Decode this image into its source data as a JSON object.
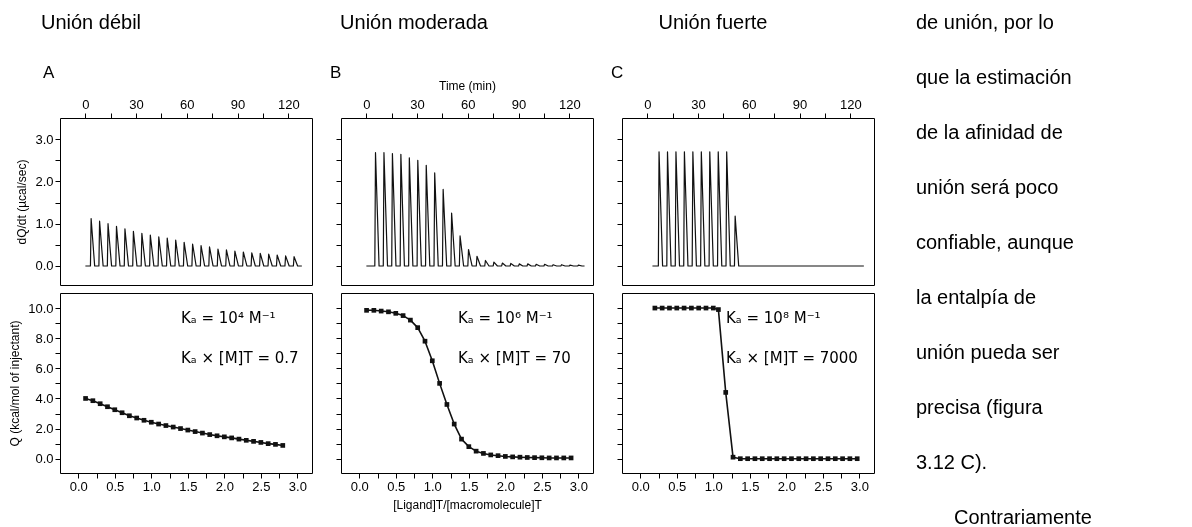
{
  "chart_data": [
    {
      "type": "line",
      "title": "Unión débil",
      "ylabel": "dQ/dt (µcal/sec)",
      "xlim": [
        -15,
        134
      ],
      "xticks": [
        0,
        {
          "value": 15,
          "label": null
        },
        30,
        {
          "value": 45,
          "label": null
        },
        60,
        {
          "value": 75,
          "label": null
        },
        90,
        {
          "value": 105,
          "label": null
        },
        120
      ],
      "ylim": [
        -0.45,
        3.5
      ],
      "yticks": [
        {
          "value": 0,
          "label": "0.0"
        },
        {
          "value": 0.5,
          "label": null
        },
        {
          "value": 1,
          "label": "1.0"
        },
        {
          "value": 1.5,
          "label": null
        },
        {
          "value": 2,
          "label": "2.0"
        },
        {
          "value": 2.5,
          "label": null
        },
        {
          "value": 3,
          "label": "3.0"
        }
      ],
      "annotations": [
        "A"
      ],
      "series": [
        {
          "color": "#111111",
          "x": [
            0,
            3,
            3.4,
            5.5,
            8,
            8.4,
            10.5,
            13,
            13.4,
            15.5,
            18,
            18.4,
            20.5,
            23,
            23.4,
            25.5,
            28,
            28.4,
            30.5,
            33,
            33.4,
            35.5,
            38,
            38.4,
            40.5,
            43,
            43.4,
            45.5,
            48,
            48.4,
            50.5,
            53,
            53.4,
            55.5,
            58,
            58.4,
            60.5,
            63,
            63.4,
            65.5,
            68,
            68.4,
            70.5,
            73,
            73.4,
            75.5,
            78,
            78.4,
            80.5,
            83,
            83.4,
            85.5,
            88,
            88.4,
            90.5,
            93,
            93.4,
            95.5,
            98,
            98.4,
            100.5,
            103,
            103.4,
            105.5,
            108,
            108.4,
            110.5,
            113,
            113.4,
            115.5,
            118,
            118.4,
            120.5,
            123,
            123.4,
            125.5,
            128
          ],
          "values": [
            0,
            0,
            1.12,
            0,
            0,
            1.06,
            0,
            0,
            1,
            0,
            0,
            0.94,
            0,
            0,
            0.88,
            0,
            0,
            0.82,
            0,
            0,
            0.77,
            0,
            0,
            0.73,
            0,
            0,
            0.69,
            0,
            0,
            0.66,
            0,
            0,
            0.61,
            0,
            0,
            0.56,
            0,
            0,
            0.52,
            0,
            0,
            0.48,
            0,
            0,
            0.45,
            0,
            0,
            0.4,
            0,
            0,
            0.38,
            0,
            0,
            0.35,
            0,
            0,
            0.33,
            0,
            0,
            0.31,
            0,
            0,
            0.3,
            0,
            0,
            0.28,
            0,
            0,
            0.26,
            0,
            0,
            0.24,
            0,
            0,
            0.22,
            0,
            0
          ]
        }
      ]
    },
    {
      "type": "line",
      "title": "Unión moderada",
      "xlabel": "Time (min)",
      "xlim": [
        -15,
        134
      ],
      "xticks": [
        0,
        {
          "value": 15,
          "label": null
        },
        30,
        {
          "value": 45,
          "label": null
        },
        60,
        {
          "value": 75,
          "label": null
        },
        90,
        {
          "value": 105,
          "label": null
        },
        120
      ],
      "ylim": [
        -0.45,
        3.5
      ],
      "yticks": [
        {
          "value": 0,
          "label": null
        },
        {
          "value": 0.5,
          "label": null
        },
        {
          "value": 1,
          "label": null
        },
        {
          "value": 1.5,
          "label": null
        },
        {
          "value": 2,
          "label": null
        },
        {
          "value": 2.5,
          "label": null
        },
        {
          "value": 3,
          "label": null
        }
      ],
      "tick_labels": "x",
      "annotations": [
        "B"
      ],
      "series": [
        {
          "color": "#111111",
          "x": [
            0,
            5,
            5.4,
            7.5,
            10,
            10.4,
            12.5,
            15,
            15.4,
            17.5,
            20,
            20.4,
            22.5,
            25,
            25.4,
            27.5,
            30,
            30.4,
            32.5,
            35,
            35.4,
            37.5,
            40,
            40.4,
            42.5,
            45,
            45.4,
            47.5,
            50,
            50.4,
            52.5,
            55,
            55.4,
            57.5,
            60,
            60.4,
            62.5,
            65,
            65.4,
            67.5,
            70,
            70.4,
            72.5,
            75,
            75.4,
            77.5,
            80,
            80.4,
            82.5,
            85,
            85.4,
            87.5,
            90,
            90.4,
            92.5,
            95,
            95.4,
            97.5,
            100,
            100.4,
            102.5,
            105,
            105.4,
            107.5,
            110,
            110.4,
            112.5,
            115,
            115.4,
            117.5,
            120,
            120.4,
            122.5,
            125,
            125.4,
            127.5,
            129
          ],
          "values": [
            0,
            0,
            2.68,
            0,
            0,
            2.68,
            0,
            0,
            2.66,
            0,
            0,
            2.64,
            0,
            0,
            2.56,
            0,
            0,
            2.5,
            0,
            0,
            2.38,
            0,
            0,
            2.2,
            0,
            0,
            1.81,
            0,
            0,
            1.25,
            0,
            0,
            0.71,
            0,
            0,
            0.39,
            0,
            0,
            0.23,
            0,
            0,
            0.13,
            0,
            0,
            0.09,
            0,
            0,
            0.07,
            0,
            0,
            0.06,
            0,
            0,
            0.05,
            0,
            0,
            0.05,
            0,
            0,
            0.04,
            0,
            0,
            0.04,
            0,
            0,
            0.03,
            0,
            0,
            0.03,
            0,
            0,
            0.02,
            0,
            0,
            0.02,
            0,
            0
          ]
        }
      ]
    },
    {
      "type": "line",
      "title": "Unión fuerte",
      "xlim": [
        -15,
        134
      ],
      "xticks": [
        0,
        {
          "value": 15,
          "label": null
        },
        30,
        {
          "value": 45,
          "label": null
        },
        60,
        {
          "value": 75,
          "label": null
        },
        90,
        {
          "value": 105,
          "label": null
        },
        120
      ],
      "ylim": [
        -0.45,
        3.5
      ],
      "yticks": [
        {
          "value": 0,
          "label": null
        },
        {
          "value": 0.5,
          "label": null
        },
        {
          "value": 1,
          "label": null
        },
        {
          "value": 1.5,
          "label": null
        },
        {
          "value": 2,
          "label": null
        },
        {
          "value": 2.5,
          "label": null
        },
        {
          "value": 3,
          "label": null
        }
      ],
      "tick_labels": "x",
      "annotations": [
        "C"
      ],
      "series": [
        {
          "color": "#111111",
          "x": [
            3,
            6.5,
            6.9,
            9,
            11.5,
            11.9,
            14,
            16.5,
            16.9,
            19,
            21.5,
            21.9,
            24,
            26.5,
            26.9,
            29,
            31.5,
            31.9,
            34,
            36.5,
            36.9,
            39,
            41.5,
            41.9,
            44,
            46.5,
            46.9,
            49,
            51.5,
            51.9,
            54,
            128
          ],
          "values": [
            0,
            0,
            2.7,
            0,
            0,
            2.7,
            0,
            0,
            2.7,
            0,
            0,
            2.7,
            0,
            0,
            2.7,
            0,
            0,
            2.7,
            0,
            0,
            2.7,
            0,
            0,
            2.7,
            0,
            0,
            2.7,
            0,
            0,
            1.18,
            0,
            0
          ]
        }
      ]
    },
    {
      "type": "line",
      "ylabel": "Q (kcal/mol of injectant)",
      "marker": "square",
      "xlim": [
        -0.25,
        3.2
      ],
      "xticks": [
        {
          "value": 0,
          "label": "0.0"
        },
        {
          "value": 0.25,
          "label": null
        },
        0.5,
        {
          "value": 0.75,
          "label": null
        },
        {
          "value": 1,
          "label": "1.0"
        },
        {
          "value": 1.25,
          "label": null
        },
        1.5,
        {
          "value": 1.75,
          "label": null
        },
        {
          "value": 2,
          "label": "2.0"
        },
        {
          "value": 2.25,
          "label": null
        },
        2.5,
        {
          "value": 2.75,
          "label": null
        },
        {
          "value": 3,
          "label": "3.0"
        }
      ],
      "ylim": [
        -0.95,
        11
      ],
      "yticks": [
        {
          "value": 0,
          "label": "0.0"
        },
        {
          "value": 1,
          "label": null
        },
        {
          "value": 2,
          "label": "2.0"
        },
        {
          "value": 3,
          "label": null
        },
        {
          "value": 4,
          "label": "4.0"
        },
        {
          "value": 5,
          "label": null
        },
        {
          "value": 6,
          "label": "6.0"
        },
        {
          "value": 7,
          "label": null
        },
        {
          "value": 8,
          "label": "8.0"
        },
        {
          "value": 9,
          "label": null
        },
        {
          "value": 10,
          "label": "10.0"
        }
      ],
      "annotations": [
        "Kₐ = 10⁴ M⁻¹",
        "Kₐ × [M]T = 0.7"
      ],
      "series": [
        {
          "color": "#111111",
          "x": [
            0.1,
            0.2,
            0.3,
            0.4,
            0.5,
            0.6,
            0.7,
            0.8,
            0.9,
            1,
            1.1,
            1.2,
            1.3,
            1.4,
            1.5,
            1.6,
            1.7,
            1.8,
            1.9,
            2,
            2.1,
            2.2,
            2.3,
            2.4,
            2.5,
            2.6,
            2.7,
            2.8
          ],
          "values": [
            4,
            3.85,
            3.65,
            3.45,
            3.25,
            3.05,
            2.85,
            2.7,
            2.55,
            2.42,
            2.3,
            2.2,
            2.1,
            2,
            1.9,
            1.8,
            1.7,
            1.6,
            1.52,
            1.45,
            1.38,
            1.3,
            1.22,
            1.15,
            1.08,
            1,
            0.95,
            0.88
          ]
        }
      ]
    },
    {
      "type": "line",
      "xlabel": "[Ligand]T/[macromolecule]T",
      "marker": "square",
      "xlim": [
        -0.25,
        3.2
      ],
      "xticks": [
        {
          "value": 0,
          "label": "0.0"
        },
        {
          "value": 0.25,
          "label": null
        },
        0.5,
        {
          "value": 0.75,
          "label": null
        },
        {
          "value": 1,
          "label": "1.0"
        },
        {
          "value": 1.25,
          "label": null
        },
        1.5,
        {
          "value": 1.75,
          "label": null
        },
        {
          "value": 2,
          "label": "2.0"
        },
        {
          "value": 2.25,
          "label": null
        },
        2.5,
        {
          "value": 2.75,
          "label": null
        },
        {
          "value": 3,
          "label": "3.0"
        }
      ],
      "ylim": [
        -0.95,
        11
      ],
      "yticks": [
        {
          "value": 0,
          "label": null
        },
        {
          "value": 1,
          "label": null
        },
        {
          "value": 2,
          "label": null
        },
        {
          "value": 3,
          "label": null
        },
        {
          "value": 4,
          "label": null
        },
        {
          "value": 5,
          "label": null
        },
        {
          "value": 6,
          "label": null
        },
        {
          "value": 7,
          "label": null
        },
        {
          "value": 8,
          "label": null
        },
        {
          "value": 9,
          "label": null
        },
        {
          "value": 10,
          "label": null
        }
      ],
      "tick_labels": "x",
      "annotations": [
        "Kₐ = 10⁶ M⁻¹",
        "Kₐ × [M]T = 70"
      ],
      "series": [
        {
          "color": "#111111",
          "x": [
            0.1,
            0.2,
            0.3,
            0.4,
            0.5,
            0.6,
            0.7,
            0.8,
            0.9,
            1,
            1.1,
            1.2,
            1.3,
            1.4,
            1.5,
            1.6,
            1.7,
            1.8,
            1.9,
            2,
            2.1,
            2.2,
            2.3,
            2.4,
            2.5,
            2.6,
            2.7,
            2.8,
            2.9
          ],
          "values": [
            9.85,
            9.85,
            9.8,
            9.75,
            9.65,
            9.5,
            9.2,
            8.7,
            7.8,
            6.5,
            5,
            3.6,
            2.3,
            1.3,
            0.8,
            0.5,
            0.35,
            0.25,
            0.2,
            0.15,
            0.12,
            0.1,
            0.08,
            0.07,
            0.06,
            0.05,
            0.05,
            0.05,
            0.05
          ]
        }
      ]
    },
    {
      "type": "line",
      "marker": "square",
      "xlim": [
        -0.25,
        3.2
      ],
      "xticks": [
        {
          "value": 0,
          "label": "0.0"
        },
        {
          "value": 0.25,
          "label": null
        },
        0.5,
        {
          "value": 0.75,
          "label": null
        },
        {
          "value": 1,
          "label": "1.0"
        },
        {
          "value": 1.25,
          "label": null
        },
        1.5,
        {
          "value": 1.75,
          "label": null
        },
        {
          "value": 2,
          "label": "2.0"
        },
        {
          "value": 2.25,
          "label": null
        },
        2.5,
        {
          "value": 2.75,
          "label": null
        },
        {
          "value": 3,
          "label": "3.0"
        }
      ],
      "ylim": [
        -0.95,
        11
      ],
      "yticks": [
        {
          "value": 0,
          "label": null
        },
        {
          "value": 1,
          "label": null
        },
        {
          "value": 2,
          "label": null
        },
        {
          "value": 3,
          "label": null
        },
        {
          "value": 4,
          "label": null
        },
        {
          "value": 5,
          "label": null
        },
        {
          "value": 6,
          "label": null
        },
        {
          "value": 7,
          "label": null
        },
        {
          "value": 8,
          "label": null
        },
        {
          "value": 9,
          "label": null
        },
        {
          "value": 10,
          "label": null
        }
      ],
      "tick_labels": "x",
      "annotations": [
        "Kₐ = 10⁸ M⁻¹",
        "Kₐ × [M]T = 7000"
      ],
      "series": [
        {
          "color": "#111111",
          "x": [
            0.2,
            0.3,
            0.4,
            0.5,
            0.6,
            0.7,
            0.8,
            0.9,
            1,
            1.07,
            1.17,
            1.27,
            1.37,
            1.47,
            1.57,
            1.67,
            1.77,
            1.87,
            1.97,
            2.07,
            2.17,
            2.27,
            2.37,
            2.47,
            2.57,
            2.67,
            2.77,
            2.87,
            2.97
          ],
          "values": [
            10,
            10,
            10,
            10,
            10,
            10,
            10,
            10,
            10,
            9.9,
            4.4,
            0.1,
            0,
            0,
            0,
            0,
            0,
            0,
            0,
            0,
            0,
            0,
            0,
            0,
            0,
            0,
            0,
            0,
            0
          ]
        }
      ]
    },
    {
      "type": "other",
      "annotations": [
        "de unión, por lo",
        "que la estimación",
        "de la afinidad de",
        "unión será poco",
        "confiable, aunque",
        "la entalpía de",
        "unión pueda ser",
        "precisa (figura",
        "3.12 C).",
        "Contrariamente"
      ]
    }
  ]
}
